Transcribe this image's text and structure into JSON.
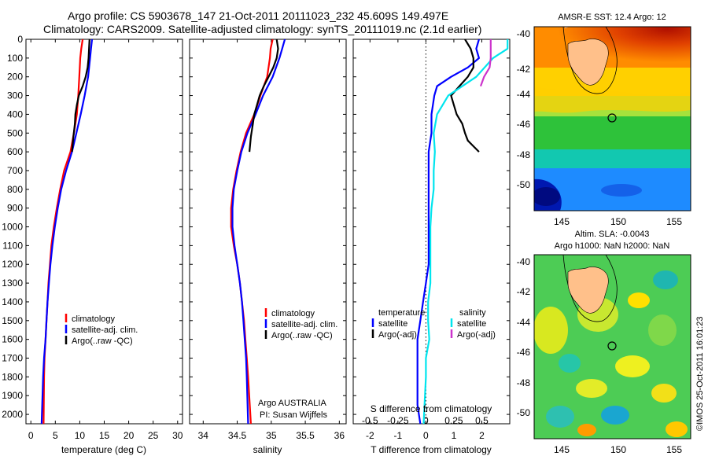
{
  "header": {
    "line1": "Argo profile: CS 5903678_147 21-Oct-2011 20111023_232 45.609S 149.497E",
    "line2": "Climatology: CARS2009. Satellite-adjusted climatology: synTS_20111019.nc (2.1d earlier)"
  },
  "colors": {
    "climatology": "#ff0000",
    "satellite": "#0000ff",
    "argo": "#000000",
    "salinity_satellite": "#00e5ee",
    "salinity_argo": "#cc33cc"
  },
  "chart_data": [
    {
      "type": "line",
      "name": "temperature",
      "xlabel": "temperature (deg C)",
      "xlim": [
        -1,
        31
      ],
      "xticks": [
        0,
        5,
        10,
        15,
        20,
        25,
        30
      ],
      "ylim": [
        0,
        2050
      ],
      "yticks": [
        0,
        100,
        200,
        300,
        400,
        500,
        600,
        700,
        800,
        900,
        1000,
        1100,
        1200,
        1300,
        1400,
        1500,
        1600,
        1700,
        1800,
        1900,
        2000
      ],
      "legend": [
        "climatology",
        "satellite-adj. clim.",
        "Argo(..raw -QC)"
      ],
      "legend_position": "lower-center",
      "series": [
        {
          "name": "climatology",
          "x": [
            10.6,
            10.3,
            10.1,
            9.9,
            9.7,
            9.4,
            8.8,
            8.1,
            6.8,
            6.0,
            5.3,
            4.7,
            4.2,
            3.9,
            3.6,
            3.4,
            3.2,
            3.0,
            2.8,
            2.7,
            2.6
          ],
          "y": [
            0,
            50,
            100,
            200,
            300,
            400,
            500,
            600,
            700,
            800,
            900,
            1000,
            1100,
            1200,
            1300,
            1400,
            1500,
            1600,
            1700,
            1800,
            2050
          ]
        },
        {
          "name": "satellite-adj. clim.",
          "x": [
            12.5,
            12.3,
            12.1,
            11.7,
            11.0,
            10.2,
            9.3,
            8.4,
            7.2,
            6.2,
            5.5,
            4.9,
            4.4,
            4.0,
            3.7,
            3.4,
            3.2,
            3.0,
            2.7,
            2.5,
            2.2
          ],
          "y": [
            0,
            50,
            100,
            200,
            300,
            400,
            500,
            600,
            700,
            800,
            900,
            1000,
            1100,
            1200,
            1300,
            1400,
            1500,
            1600,
            1700,
            1800,
            2050
          ]
        },
        {
          "name": "Argo(..raw -QC)",
          "x": [
            12.0,
            11.9,
            11.8,
            11.6,
            11.2,
            10.6,
            9.8,
            9.4,
            9.1,
            9.0,
            8.7,
            8.4
          ],
          "y": [
            0,
            50,
            100,
            150,
            200,
            250,
            300,
            350,
            400,
            450,
            520,
            600
          ]
        }
      ]
    },
    {
      "type": "line",
      "name": "salinity",
      "xlabel": "salinity",
      "xlim": [
        33.8,
        36.1
      ],
      "xticks": [
        34,
        34.5,
        35,
        35.5,
        36
      ],
      "ylim": [
        0,
        2050
      ],
      "legend": [
        "climatology",
        "satellite-adj. clim.",
        "Argo(..raw -QC)"
      ],
      "legend_position": "lower-center",
      "annotation": [
        "Argo AUSTRALIA",
        "PI: Susan Wijffels"
      ],
      "series": [
        {
          "name": "climatology",
          "x": [
            35.02,
            34.99,
            34.98,
            34.94,
            34.84,
            34.75,
            34.63,
            34.55,
            34.49,
            34.44,
            34.41,
            34.41,
            34.45,
            34.5,
            34.54,
            34.57,
            34.6,
            34.62,
            34.64,
            34.66,
            34.7
          ],
          "y": [
            0,
            50,
            100,
            200,
            300,
            400,
            500,
            600,
            700,
            800,
            900,
            1000,
            1100,
            1200,
            1300,
            1400,
            1500,
            1600,
            1700,
            1800,
            2050
          ]
        },
        {
          "name": "satellite-adj. clim.",
          "x": [
            35.2,
            35.16,
            35.12,
            35.02,
            34.88,
            34.77,
            34.65,
            34.56,
            34.5,
            34.45,
            34.43,
            34.43,
            34.46,
            34.5,
            34.54,
            34.57,
            34.59,
            34.61,
            34.63,
            34.64,
            34.66
          ],
          "y": [
            0,
            50,
            100,
            200,
            300,
            400,
            500,
            600,
            700,
            800,
            900,
            1000,
            1100,
            1200,
            1300,
            1400,
            1500,
            1600,
            1700,
            1800,
            2050
          ]
        },
        {
          "name": "Argo(..raw -QC)",
          "x": [
            35.08,
            35.1,
            35.08,
            35.03,
            34.96,
            34.89,
            34.83,
            34.79,
            34.75,
            34.73,
            34.7,
            34.68
          ],
          "y": [
            0,
            50,
            100,
            150,
            200,
            250,
            300,
            350,
            400,
            450,
            520,
            600
          ]
        }
      ]
    },
    {
      "type": "line",
      "name": "difference",
      "xlabel": "T difference from climatology",
      "xlabel_top": "S difference from climatology",
      "xlim": [
        -2.6,
        3.0
      ],
      "xticks": [
        -2,
        -1,
        0,
        1,
        2
      ],
      "xticks_top": [
        -0.5,
        -0.25,
        0,
        0.25,
        0.5
      ],
      "legend_temperature": [
        "temperature",
        "satellite",
        "Argo(-adj)"
      ],
      "legend_salinity": [
        "salinity",
        "satellite",
        "Argo(-adj)"
      ],
      "series": [
        {
          "name": "temperature satellite",
          "x": [
            1.9,
            1.8,
            1.9,
            1.5,
            0.9,
            0.4,
            0.3,
            0.2,
            0.2,
            0.1,
            0.1,
            0.1,
            0.1,
            0.1,
            0.1,
            0.1,
            0.0,
            -0.1,
            -0.2,
            -0.3,
            -0.3,
            -0.3,
            -0.2
          ],
          "y": [
            0,
            50,
            100,
            150,
            200,
            250,
            300,
            400,
            500,
            600,
            700,
            800,
            900,
            1000,
            1100,
            1200,
            1300,
            1400,
            1500,
            1600,
            1800,
            1950,
            2050
          ]
        },
        {
          "name": "temperature Argo(-adj)",
          "x": [
            1.4,
            1.6,
            1.7,
            1.7,
            1.5,
            1.2,
            0.9,
            1.0,
            1.1,
            1.3,
            1.4,
            1.5,
            1.7,
            1.9
          ],
          "y": [
            0,
            50,
            100,
            150,
            200,
            250,
            300,
            350,
            400,
            450,
            500,
            540,
            570,
            600
          ]
        },
        {
          "name": "salinity satellite",
          "x": [
            0.73,
            0.73,
            0.6,
            0.45,
            0.2,
            0.1,
            0.07,
            0.08,
            0.07,
            0.07,
            0.05,
            0.04,
            0.04,
            0.04,
            0.04,
            0.02,
            0.02,
            0.03,
            0.0,
            0.0,
            -0.02
          ],
          "y": [
            0,
            50,
            100,
            200,
            300,
            400,
            500,
            600,
            700,
            800,
            900,
            1000,
            1100,
            1200,
            1300,
            1400,
            1500,
            1600,
            1700,
            1800,
            2050
          ]
        },
        {
          "name": "salinity Argo(-adj)",
          "x": [
            0.58,
            0.58,
            0.58,
            0.57,
            0.52,
            0.49
          ],
          "y": [
            0,
            50,
            100,
            150,
            200,
            250
          ]
        }
      ]
    }
  ],
  "maps": {
    "sst": {
      "title": "AMSR-E SST: 12.4  Argo: 12",
      "yticks": [
        "-40",
        "-42",
        "-44",
        "-46",
        "-48",
        "-50"
      ],
      "xticks": [
        "145",
        "150",
        "155"
      ]
    },
    "sla": {
      "title1": "Altim. SLA: -0.0043",
      "title2": "Argo h1000: NaN h2000: NaN",
      "yticks": [
        "-40",
        "-42",
        "-44",
        "-46",
        "-48",
        "-50"
      ],
      "xticks": [
        "145",
        "150",
        "155"
      ]
    }
  },
  "credit": "©IMOS 25-Oct-2011 16:01:23"
}
